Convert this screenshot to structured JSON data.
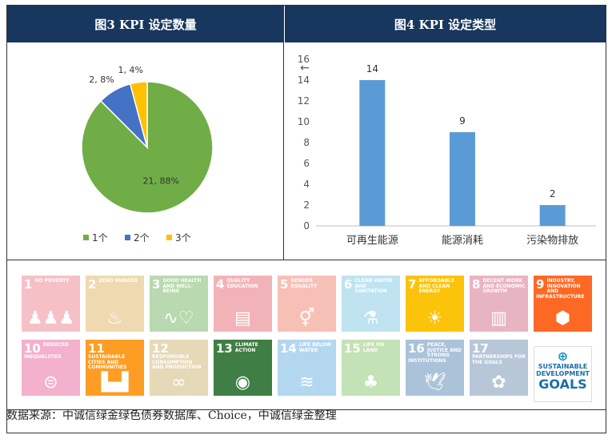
{
  "left_panel": {
    "title": "图3 KPI 设定数量"
  },
  "right_panel": {
    "title": "图4 KPI 设定类型",
    "back_arrow": "←"
  },
  "chart_data": [
    {
      "type": "pie",
      "title": "图3 KPI 设定数量",
      "labels": [
        "1个",
        "2个",
        "3个"
      ],
      "values": [
        21,
        2,
        1
      ],
      "percent_labels": [
        "21, 88%",
        "2, 8%",
        "1, 4%"
      ],
      "colors": [
        "#70ad47",
        "#4472c4",
        "#ffc000"
      ],
      "legend_position": "bottom"
    },
    {
      "type": "bar",
      "title": "图4 KPI 设定类型",
      "categories": [
        "可再生能源",
        "能源消耗",
        "污染物排放"
      ],
      "values": [
        14,
        9,
        2
      ],
      "ylim": [
        0,
        16
      ],
      "yticks": [
        0,
        2,
        4,
        6,
        8,
        10,
        12,
        14,
        16
      ],
      "color": "#5b9bd5",
      "grid": false
    }
  ],
  "sdg_tiles": [
    {
      "num": "1",
      "title": "No poverty",
      "color": "#f6c1c6",
      "glyph": "♟♟♟"
    },
    {
      "num": "2",
      "title": "Zero hunger",
      "color": "#efd9b0",
      "glyph": "♨"
    },
    {
      "num": "3",
      "title": "Good health and well-being",
      "color": "#b9d9b0",
      "glyph": "∿♡"
    },
    {
      "num": "4",
      "title": "Quality education",
      "color": "#f2b3b8",
      "glyph": "▤"
    },
    {
      "num": "5",
      "title": "Gender equality",
      "color": "#f7c0b6",
      "glyph": "⚥"
    },
    {
      "num": "6",
      "title": "Clean water and sanitation",
      "color": "#bfe3f0",
      "glyph": "⚗"
    },
    {
      "num": "7",
      "title": "Affordable and clean energy",
      "color": "#fcc30b",
      "glyph": "☀"
    },
    {
      "num": "8",
      "title": "Decent work and economic growth",
      "color": "#e9b4c2",
      "glyph": "▥"
    },
    {
      "num": "9",
      "title": "Industry, innovation and infrastructure",
      "color": "#fd6925",
      "glyph": "⬢"
    },
    {
      "num": "10",
      "title": "Reduced inequalities",
      "color": "#f3b1cd",
      "glyph": "⊜"
    },
    {
      "num": "11",
      "title": "Sustainable cities and communities",
      "color": "#fd9d24",
      "glyph": "▙▟"
    },
    {
      "num": "12",
      "title": "Responsible consumption and production",
      "color": "#e6d9b8",
      "glyph": "∞"
    },
    {
      "num": "13",
      "title": "Climate action",
      "color": "#3f7e44",
      "glyph": "◉"
    },
    {
      "num": "14",
      "title": "Life below water",
      "color": "#b3d7ef",
      "glyph": "≋"
    },
    {
      "num": "15",
      "title": "Life on land",
      "color": "#c3e2b5",
      "glyph": "♣"
    },
    {
      "num": "16",
      "title": "Peace, justice and strong institutions",
      "color": "#aac3d9",
      "glyph": "🕊"
    },
    {
      "num": "17",
      "title": "Partnerships for the goals",
      "color": "#b8c7d8",
      "glyph": "✿"
    }
  ],
  "sdg_logo": {
    "line1": "SUSTAINABLE",
    "line2": "DEVELOPMENT",
    "line3": "GOALS"
  },
  "source": "数据来源：中诚信绿金绿色债券数据库、Choice，中诚信绿金整理"
}
